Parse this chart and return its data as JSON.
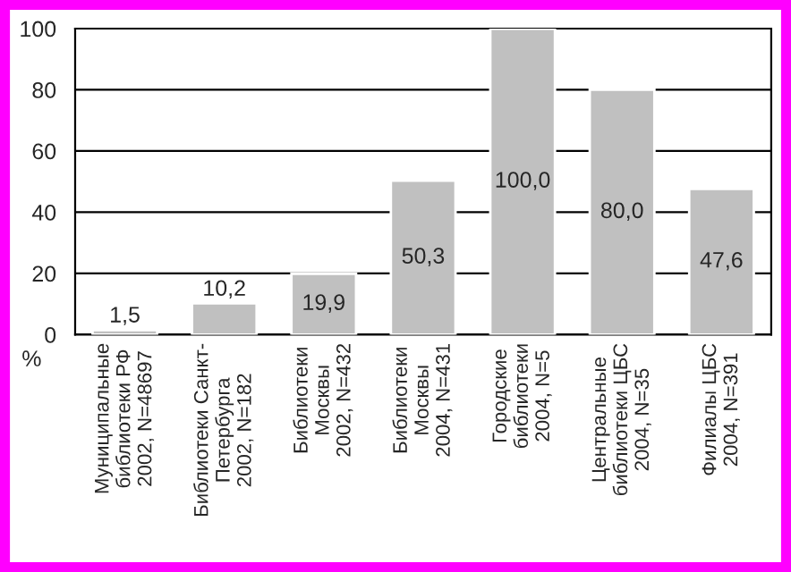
{
  "chart_data": {
    "type": "bar",
    "ylabel": "%",
    "categories": [
      "Муниципальные\nбиблиотеки РФ\n2002, N=48697",
      "Библиотеки Санкт-\nПетербурга\n2002, N=182",
      "Библиотеки\nМосквы\n2002, N=432",
      "Библиотеки\nМосквы\n2004, N=431",
      "Городские\nбиблиотеки\n2004, N=5",
      "Центральные\nбиблиотеки ЦБС\n2004, N=35",
      "Филиалы ЦБС\n2004, N=391"
    ],
    "values": [
      1.5,
      10.2,
      19.9,
      50.3,
      100.0,
      80.0,
      47.6
    ],
    "value_labels": [
      "1,5",
      "10,2",
      "19,9",
      "50,3",
      "100,0",
      "80,0",
      "47,6"
    ],
    "color": "#c0c0c0",
    "ylim": [
      0,
      100
    ],
    "yticks": [
      0,
      20,
      40,
      60,
      80,
      100
    ],
    "grid": "y"
  }
}
